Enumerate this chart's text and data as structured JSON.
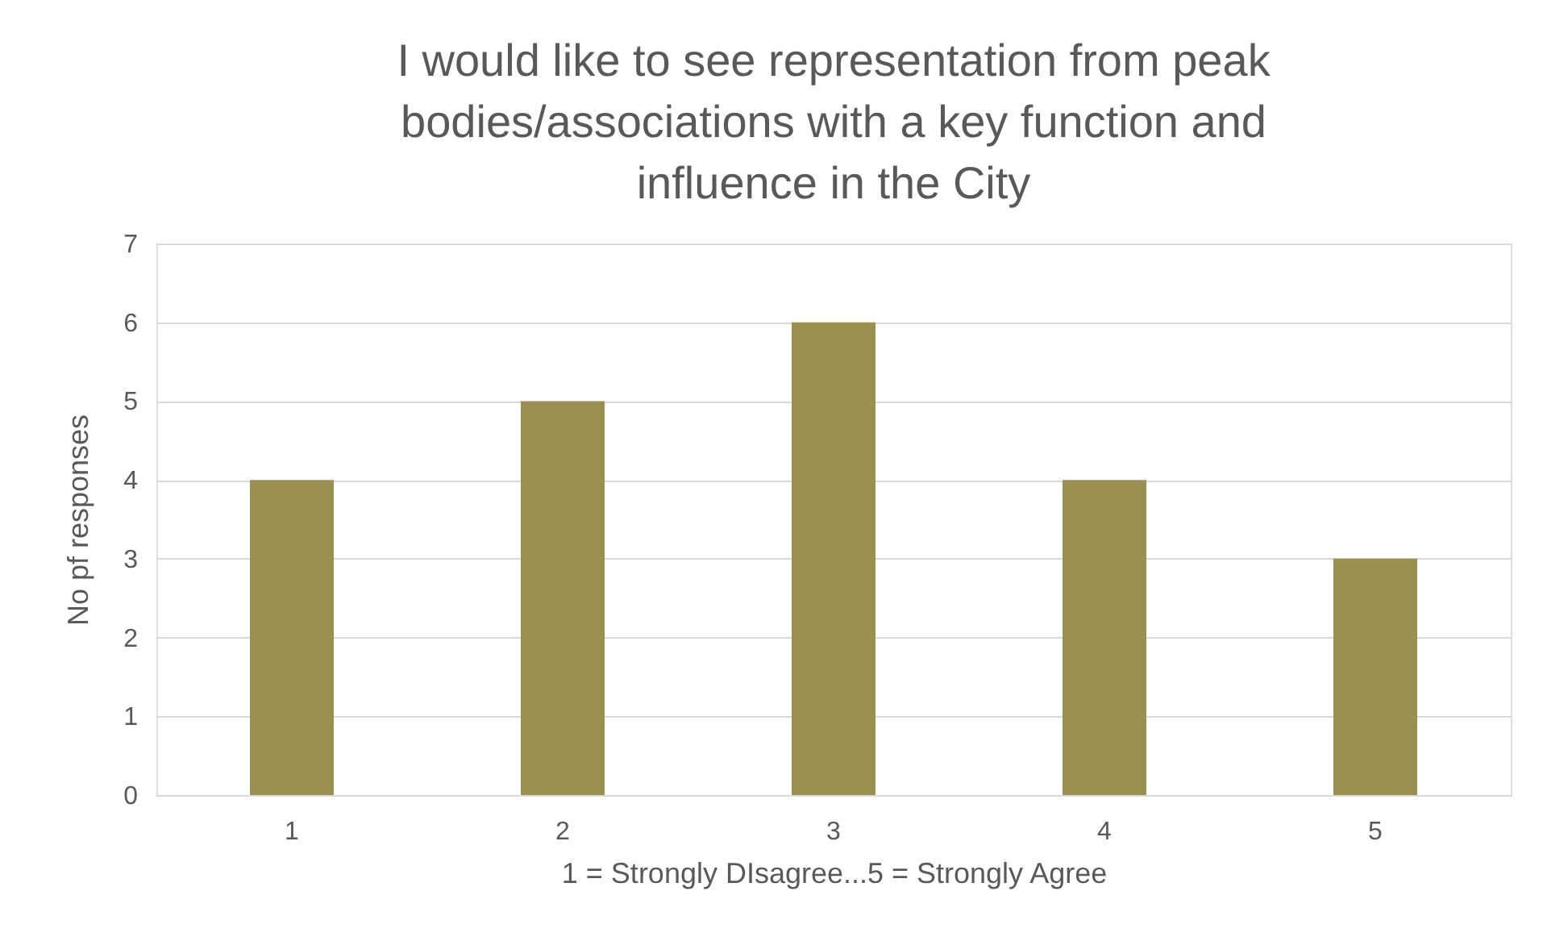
{
  "chart_data": {
    "type": "bar",
    "title": "I would like to see representation from peak bodies/associations with a key function and influence in the City",
    "xlabel": "1 = Strongly DIsagree...5 = Strongly Agree",
    "ylabel": "No pf responses",
    "categories": [
      "1",
      "2",
      "3",
      "4",
      "5"
    ],
    "values": [
      4,
      5,
      6,
      4,
      3
    ],
    "color": "#9b8f51",
    "ylim": [
      0,
      7
    ],
    "yticks": [
      0,
      1,
      2,
      3,
      4,
      5,
      6,
      7
    ],
    "grid": "y"
  }
}
